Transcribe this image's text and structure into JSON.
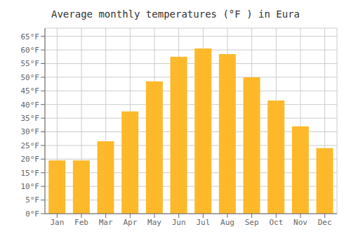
{
  "chart_data": {
    "type": "bar",
    "title": "Average monthly temperatures (°F ) in Eura",
    "categories": [
      "Jan",
      "Feb",
      "Mar",
      "Apr",
      "May",
      "Jun",
      "Jul",
      "Aug",
      "Sep",
      "Oct",
      "Nov",
      "Dec"
    ],
    "values": [
      19.5,
      19.5,
      26.5,
      37.5,
      48.5,
      57.5,
      60.5,
      58.5,
      50.0,
      41.5,
      32.0,
      24.0
    ],
    "color": "#FDB92A",
    "ylim": [
      0,
      68
    ],
    "yticks": [
      {
        "value": 0,
        "label": "0°F"
      },
      {
        "value": 5,
        "label": "5°F"
      },
      {
        "value": 10,
        "label": "10°F"
      },
      {
        "value": 15,
        "label": "15°F"
      },
      {
        "value": 20,
        "label": "20°F"
      },
      {
        "value": 25,
        "label": "25°F"
      },
      {
        "value": 30,
        "label": "30°F"
      },
      {
        "value": 35,
        "label": "35°F"
      },
      {
        "value": 40,
        "label": "40°F"
      },
      {
        "value": 45,
        "label": "45°F"
      },
      {
        "value": 50,
        "label": "50°F"
      },
      {
        "value": 55,
        "label": "55°F"
      },
      {
        "value": 60,
        "label": "60°F"
      },
      {
        "value": 65,
        "label": "65°F"
      }
    ],
    "grid": true
  }
}
